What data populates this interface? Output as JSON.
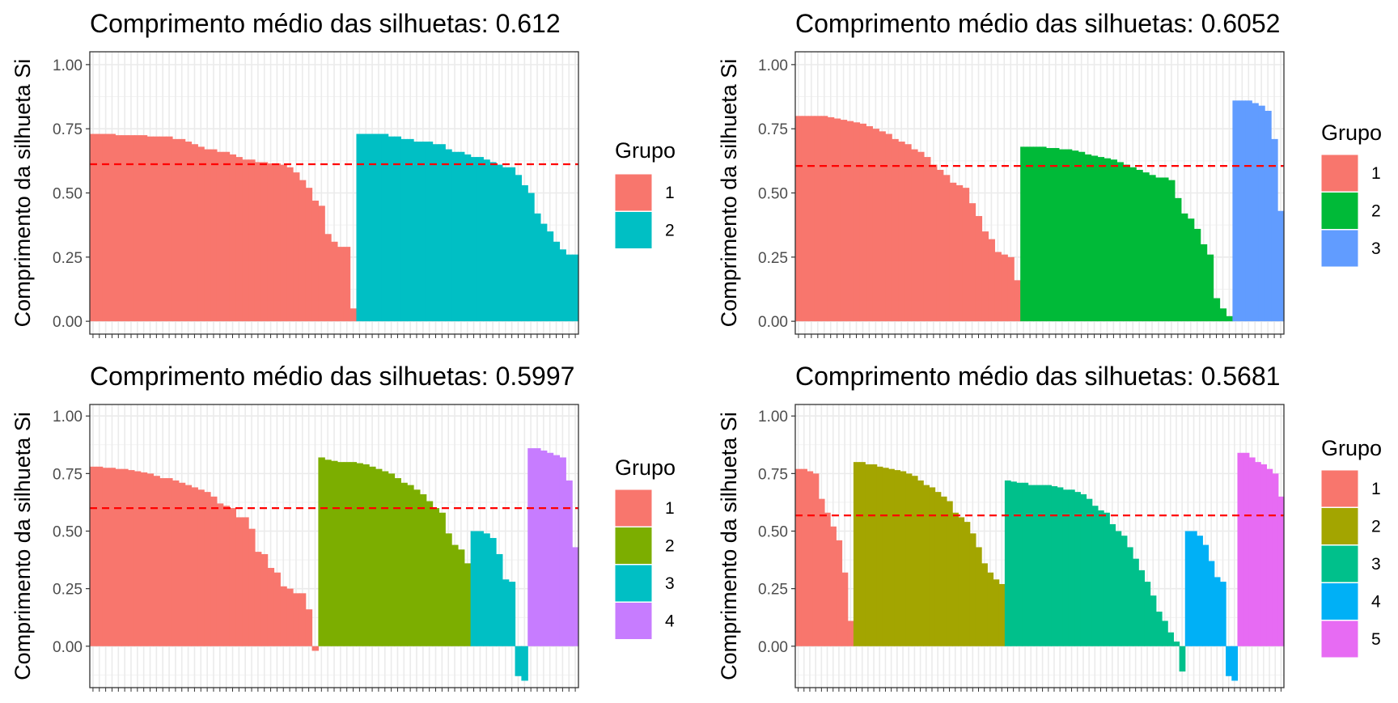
{
  "chart_data": [
    {
      "type": "bar",
      "title": "Comprimento médio das silhuetas: 0.612",
      "ylabel": "Comprimento da silhueta Si",
      "xlabel": "",
      "ylim": [
        -0.05,
        1.05
      ],
      "yticks": [
        "0.00",
        "0.25",
        "0.50",
        "0.75",
        "1.00"
      ],
      "grid": true,
      "legend_title": "Grupo",
      "legend_position": "right",
      "average": 0.612,
      "series": [
        {
          "name": "1",
          "color": "#F8766D",
          "values": [
            0.73,
            0.73,
            0.73,
            0.73,
            0.725,
            0.725,
            0.725,
            0.725,
            0.725,
            0.72,
            0.72,
            0.72,
            0.72,
            0.71,
            0.71,
            0.7,
            0.69,
            0.68,
            0.67,
            0.67,
            0.66,
            0.66,
            0.65,
            0.64,
            0.63,
            0.63,
            0.62,
            0.62,
            0.615,
            0.615,
            0.61,
            0.6,
            0.58,
            0.55,
            0.52,
            0.47,
            0.45,
            0.34,
            0.31,
            0.29,
            0.29,
            0.05
          ]
        },
        {
          "name": "2",
          "color": "#00BFC4",
          "values": [
            0.73,
            0.73,
            0.73,
            0.73,
            0.73,
            0.72,
            0.72,
            0.71,
            0.71,
            0.7,
            0.7,
            0.7,
            0.69,
            0.69,
            0.67,
            0.66,
            0.66,
            0.65,
            0.64,
            0.64,
            0.63,
            0.62,
            0.61,
            0.6,
            0.6,
            0.57,
            0.53,
            0.5,
            0.42,
            0.38,
            0.35,
            0.31,
            0.28,
            0.26,
            0.26
          ]
        }
      ]
    },
    {
      "type": "bar",
      "title": "Comprimento médio das silhuetas: 0.6052",
      "ylabel": "Comprimento da silhueta Si",
      "xlabel": "",
      "ylim": [
        -0.05,
        1.05
      ],
      "yticks": [
        "0.00",
        "0.25",
        "0.50",
        "0.75",
        "1.00"
      ],
      "grid": true,
      "legend_title": "Grupo",
      "legend_position": "right",
      "average": 0.6052,
      "series": [
        {
          "name": "1",
          "color": "#F8766D",
          "values": [
            0.8,
            0.8,
            0.8,
            0.8,
            0.8,
            0.795,
            0.79,
            0.785,
            0.78,
            0.775,
            0.77,
            0.76,
            0.75,
            0.74,
            0.73,
            0.71,
            0.7,
            0.69,
            0.67,
            0.66,
            0.64,
            0.61,
            0.59,
            0.57,
            0.54,
            0.53,
            0.52,
            0.46,
            0.41,
            0.35,
            0.32,
            0.27,
            0.26,
            0.25,
            0.16
          ]
        },
        {
          "name": "2",
          "color": "#00BA38",
          "values": [
            0.68,
            0.68,
            0.68,
            0.68,
            0.675,
            0.675,
            0.67,
            0.67,
            0.665,
            0.66,
            0.65,
            0.645,
            0.64,
            0.635,
            0.63,
            0.62,
            0.61,
            0.6,
            0.59,
            0.58,
            0.57,
            0.56,
            0.56,
            0.55,
            0.48,
            0.42,
            0.4,
            0.36,
            0.3,
            0.26,
            0.09,
            0.05,
            0.02
          ]
        },
        {
          "name": "3",
          "color": "#619CFF",
          "values": [
            0.86,
            0.86,
            0.86,
            0.85,
            0.84,
            0.82,
            0.71,
            0.43
          ]
        }
      ]
    },
    {
      "type": "bar",
      "title": "Comprimento médio das silhuetas: 0.5997",
      "ylabel": "Comprimento da silhueta Si",
      "xlabel": "",
      "ylim": [
        -0.18,
        1.05
      ],
      "yticks": [
        "0.00",
        "0.25",
        "0.50",
        "0.75",
        "1.00"
      ],
      "grid": true,
      "legend_title": "Grupo",
      "legend_position": "right",
      "average": 0.5997,
      "series": [
        {
          "name": "1",
          "color": "#F8766D",
          "values": [
            0.78,
            0.78,
            0.775,
            0.775,
            0.77,
            0.77,
            0.765,
            0.76,
            0.755,
            0.75,
            0.74,
            0.73,
            0.73,
            0.72,
            0.71,
            0.7,
            0.69,
            0.68,
            0.67,
            0.65,
            0.62,
            0.61,
            0.6,
            0.56,
            0.56,
            0.51,
            0.41,
            0.4,
            0.34,
            0.32,
            0.26,
            0.25,
            0.23,
            0.23,
            0.16,
            -0.02
          ]
        },
        {
          "name": "2",
          "color": "#7CAE00",
          "values": [
            0.82,
            0.81,
            0.805,
            0.8,
            0.8,
            0.8,
            0.795,
            0.79,
            0.78,
            0.77,
            0.76,
            0.75,
            0.73,
            0.71,
            0.7,
            0.68,
            0.66,
            0.63,
            0.6,
            0.58,
            0.49,
            0.44,
            0.42,
            0.36
          ]
        },
        {
          "name": "3",
          "color": "#00BFC4",
          "values": [
            0.5,
            0.5,
            0.49,
            0.47,
            0.4,
            0.29,
            0.28,
            -0.13,
            -0.15
          ]
        },
        {
          "name": "4",
          "color": "#C77CFF",
          "values": [
            0.86,
            0.86,
            0.85,
            0.84,
            0.83,
            0.82,
            0.72,
            0.43
          ]
        }
      ]
    },
    {
      "type": "bar",
      "title": "Comprimento médio das silhuetas: 0.5681",
      "ylabel": "Comprimento da silhueta Si",
      "xlabel": "",
      "ylim": [
        -0.18,
        1.05
      ],
      "yticks": [
        "0.00",
        "0.25",
        "0.50",
        "0.75",
        "1.00"
      ],
      "grid": true,
      "legend_title": "Grupo",
      "legend_position": "right",
      "average": 0.5681,
      "series": [
        {
          "name": "1",
          "color": "#F8766D",
          "values": [
            0.77,
            0.77,
            0.76,
            0.75,
            0.64,
            0.58,
            0.52,
            0.46,
            0.32,
            0.11
          ]
        },
        {
          "name": "2",
          "color": "#A3A500",
          "values": [
            0.8,
            0.8,
            0.79,
            0.79,
            0.78,
            0.775,
            0.77,
            0.765,
            0.76,
            0.75,
            0.74,
            0.72,
            0.7,
            0.69,
            0.67,
            0.65,
            0.63,
            0.58,
            0.56,
            0.54,
            0.49,
            0.43,
            0.36,
            0.32,
            0.29,
            0.27
          ]
        },
        {
          "name": "3",
          "color": "#00C08B",
          "values": [
            0.72,
            0.715,
            0.71,
            0.71,
            0.7,
            0.7,
            0.7,
            0.7,
            0.695,
            0.69,
            0.68,
            0.68,
            0.67,
            0.66,
            0.64,
            0.61,
            0.59,
            0.58,
            0.53,
            0.5,
            0.48,
            0.43,
            0.38,
            0.33,
            0.28,
            0.22,
            0.15,
            0.11,
            0.06,
            0.02,
            -0.11
          ]
        },
        {
          "name": "4",
          "color": "#00B0F6",
          "values": [
            0.5,
            0.5,
            0.48,
            0.44,
            0.37,
            0.3,
            0.28,
            -0.13,
            -0.15
          ]
        },
        {
          "name": "5",
          "color": "#E76BF3",
          "values": [
            0.84,
            0.84,
            0.82,
            0.8,
            0.79,
            0.77,
            0.75,
            0.65
          ]
        }
      ]
    }
  ]
}
